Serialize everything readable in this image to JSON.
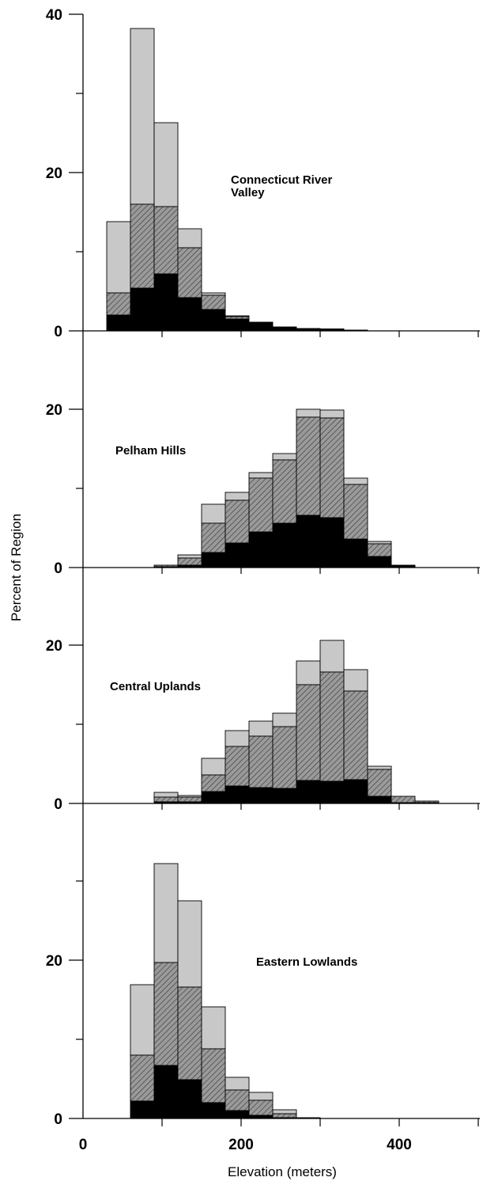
{
  "chart_data": {
    "type": "bar",
    "stacked": true,
    "xlabel": "Elevation (meters)",
    "ylabel": "Percent of Region",
    "x_ticks": [
      "0",
      "200",
      "400"
    ],
    "xlim": [
      0,
      500
    ],
    "bin_width": 30,
    "layer_colors": {
      "bottom": "#000000",
      "middle": "#9a9a9a",
      "top": "#c8c8c8"
    },
    "panels": [
      {
        "label_lines": [
          "Connecticut River",
          "Valley"
        ],
        "ylim": [
          0,
          40
        ],
        "y_ticks": [
          "40",
          "20",
          "0"
        ],
        "bins": [
          {
            "x0": 30,
            "bottom": 2.0,
            "middle": 4.8,
            "total": 13.8
          },
          {
            "x0": 60,
            "bottom": 5.4,
            "middle": 16.0,
            "total": 38.2
          },
          {
            "x0": 90,
            "bottom": 7.2,
            "middle": 15.7,
            "total": 26.3
          },
          {
            "x0": 120,
            "bottom": 4.2,
            "middle": 10.5,
            "total": 12.9
          },
          {
            "x0": 150,
            "bottom": 2.7,
            "middle": 4.5,
            "total": 4.8
          },
          {
            "x0": 180,
            "bottom": 1.5,
            "middle": 1.8,
            "total": 1.9
          },
          {
            "x0": 210,
            "bottom": 1.1,
            "middle": 1.1,
            "total": 1.1
          },
          {
            "x0": 240,
            "bottom": 0.5,
            "middle": 0.5,
            "total": 0.5
          },
          {
            "x0": 270,
            "bottom": 0.3,
            "middle": 0.3,
            "total": 0.3
          },
          {
            "x0": 300,
            "bottom": 0.25,
            "middle": 0.25,
            "total": 0.25
          },
          {
            "x0": 330,
            "bottom": 0.1,
            "middle": 0.1,
            "total": 0.1
          }
        ]
      },
      {
        "label_lines": [
          "Pelham Hills"
        ],
        "ylim": [
          0,
          20
        ],
        "y_ticks": [
          "20",
          "0"
        ],
        "bins": [
          {
            "x0": 90,
            "bottom": 0.1,
            "middle": 0.3,
            "total": 0.3
          },
          {
            "x0": 120,
            "bottom": 0.3,
            "middle": 1.2,
            "total": 1.6
          },
          {
            "x0": 150,
            "bottom": 1.9,
            "middle": 5.6,
            "total": 8.0
          },
          {
            "x0": 180,
            "bottom": 3.1,
            "middle": 8.5,
            "total": 9.5
          },
          {
            "x0": 210,
            "bottom": 4.5,
            "middle": 11.3,
            "total": 12.0
          },
          {
            "x0": 240,
            "bottom": 5.6,
            "middle": 13.6,
            "total": 14.4
          },
          {
            "x0": 270,
            "bottom": 6.6,
            "middle": 19.0,
            "total": 20.0
          },
          {
            "x0": 300,
            "bottom": 6.3,
            "middle": 18.9,
            "total": 19.9
          },
          {
            "x0": 330,
            "bottom": 3.6,
            "middle": 10.5,
            "total": 11.3
          },
          {
            "x0": 360,
            "bottom": 1.4,
            "middle": 3.0,
            "total": 3.3
          },
          {
            "x0": 390,
            "bottom": 0.3,
            "middle": 0.3,
            "total": 0.3
          }
        ]
      },
      {
        "label_lines": [
          "Central Uplands"
        ],
        "ylim": [
          0,
          20
        ],
        "y_ticks": [
          "20",
          "0"
        ],
        "bins": [
          {
            "x0": 90,
            "bottom": 0.2,
            "middle": 0.8,
            "total": 1.4
          },
          {
            "x0": 120,
            "bottom": 0.2,
            "middle": 0.8,
            "total": 1.0
          },
          {
            "x0": 150,
            "bottom": 1.5,
            "middle": 3.6,
            "total": 5.7
          },
          {
            "x0": 180,
            "bottom": 2.2,
            "middle": 7.2,
            "total": 9.2
          },
          {
            "x0": 210,
            "bottom": 2.0,
            "middle": 8.5,
            "total": 10.4
          },
          {
            "x0": 240,
            "bottom": 1.9,
            "middle": 9.7,
            "total": 11.4
          },
          {
            "x0": 270,
            "bottom": 2.9,
            "middle": 15.0,
            "total": 18.0
          },
          {
            "x0": 300,
            "bottom": 2.8,
            "middle": 16.6,
            "total": 20.6
          },
          {
            "x0": 330,
            "bottom": 3.0,
            "middle": 14.2,
            "total": 16.9
          },
          {
            "x0": 360,
            "bottom": 0.9,
            "middle": 4.3,
            "total": 4.7
          },
          {
            "x0": 390,
            "bottom": 0.1,
            "middle": 0.9,
            "total": 0.9
          },
          {
            "x0": 420,
            "bottom": 0.1,
            "middle": 0.3,
            "total": 0.3
          }
        ]
      },
      {
        "label_lines": [
          "Eastern Lowlands"
        ],
        "ylim": [
          0,
          40
        ],
        "y_ticks": [
          "20",
          "0"
        ],
        "bins": [
          {
            "x0": 60,
            "bottom": 2.2,
            "middle": 8.0,
            "total": 16.9
          },
          {
            "x0": 90,
            "bottom": 6.7,
            "middle": 19.7,
            "total": 32.2
          },
          {
            "x0": 120,
            "bottom": 4.9,
            "middle": 16.6,
            "total": 27.5
          },
          {
            "x0": 150,
            "bottom": 2.0,
            "middle": 8.8,
            "total": 14.1
          },
          {
            "x0": 180,
            "bottom": 1.0,
            "middle": 3.6,
            "total": 5.2
          },
          {
            "x0": 210,
            "bottom": 0.4,
            "middle": 2.3,
            "total": 3.3
          },
          {
            "x0": 240,
            "bottom": 0.1,
            "middle": 0.6,
            "total": 1.1
          },
          {
            "x0": 270,
            "bottom": 0.1,
            "middle": 0.1,
            "total": 0.1
          }
        ]
      }
    ]
  }
}
